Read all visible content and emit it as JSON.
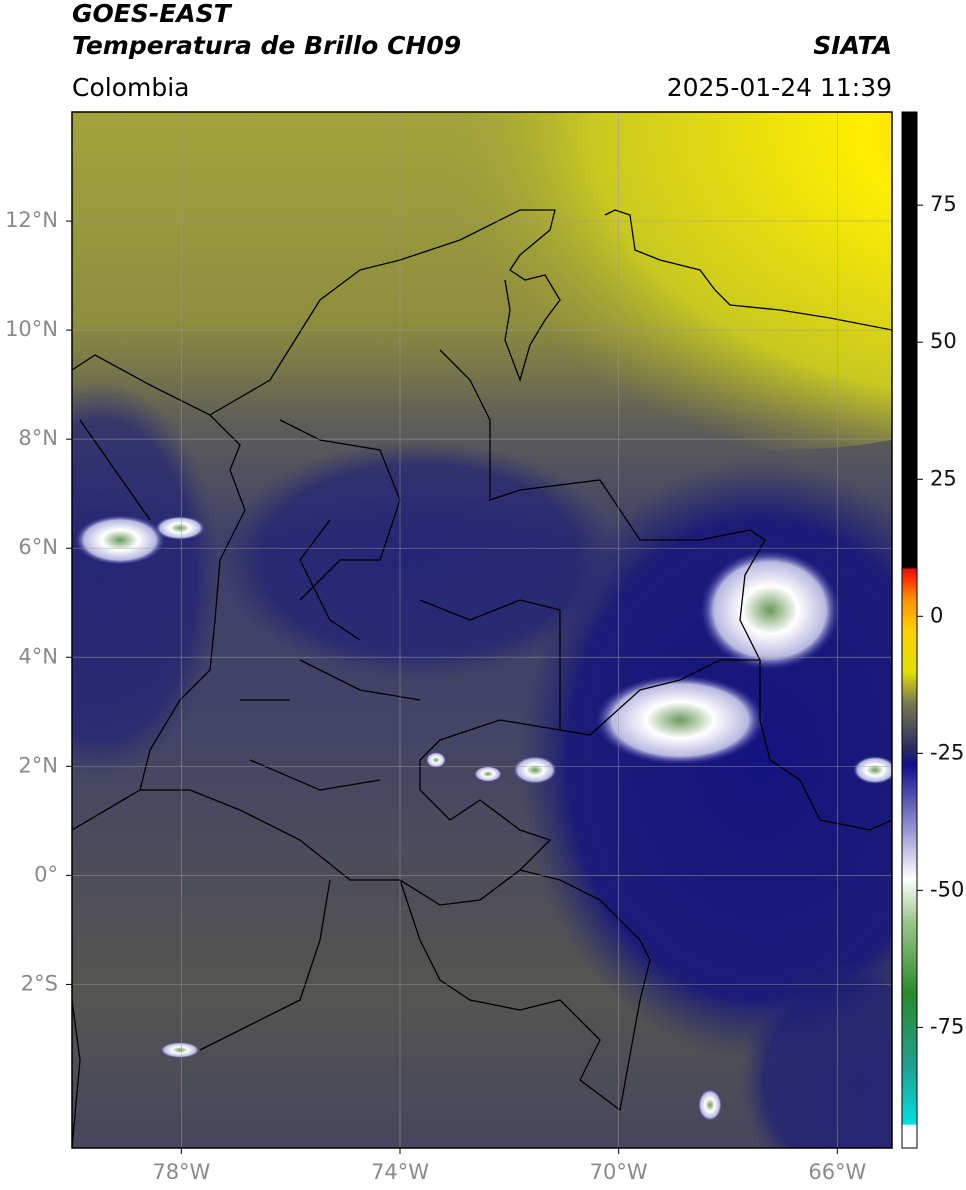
{
  "header": {
    "satellite": "GOES-EAST",
    "product": "Temperatura de Brillo CH09",
    "region": "Colombia",
    "source": "SIATA",
    "datetime": "2025-01-24 11:39"
  },
  "map": {
    "xlim": [
      -80,
      -65
    ],
    "ylim": [
      -5,
      14
    ],
    "xticks": [
      {
        "value": -78,
        "label": "78°W"
      },
      {
        "value": -74,
        "label": "74°W"
      },
      {
        "value": -70,
        "label": "70°W"
      },
      {
        "value": -66,
        "label": "66°W"
      }
    ],
    "yticks": [
      {
        "value": 12,
        "label": "12°N"
      },
      {
        "value": 10,
        "label": "10°N"
      },
      {
        "value": 8,
        "label": "8°N"
      },
      {
        "value": 6,
        "label": "6°N"
      },
      {
        "value": 4,
        "label": "4°N"
      },
      {
        "value": 2,
        "label": "2°N"
      },
      {
        "value": 0,
        "label": "0°"
      },
      {
        "value": -2,
        "label": "2°S"
      }
    ],
    "grid": true
  },
  "colorbar": {
    "lim": [
      -97,
      92
    ],
    "ticks": [
      75,
      50,
      25,
      0,
      -25,
      -50,
      -75
    ]
  }
}
